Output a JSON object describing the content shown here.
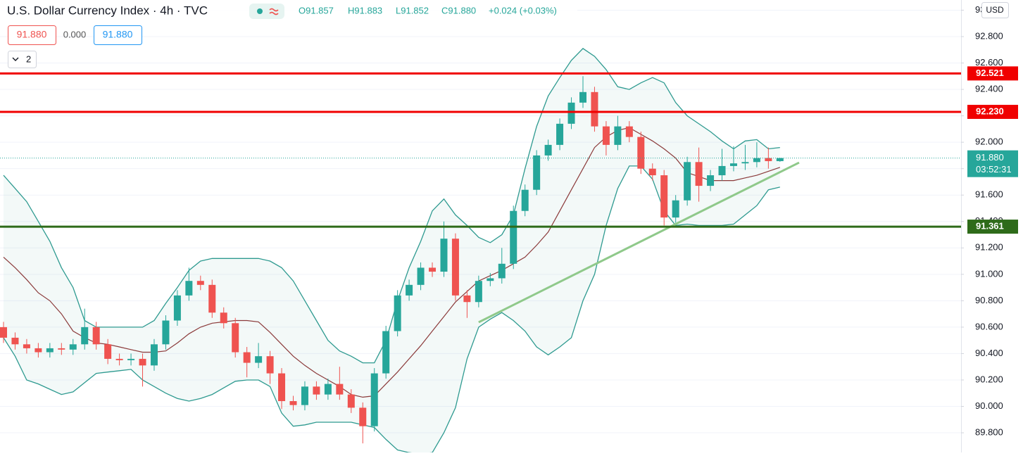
{
  "header": {
    "title": "U.S. Dollar Currency Index · 4h · TVC",
    "ohlc": [
      "O91.857",
      "H91.883",
      "L91.852",
      "C91.880",
      "+0.024 (+0.03%)"
    ],
    "bid": "91.880",
    "spread": "0.000",
    "ask": "91.880",
    "indicators": "2",
    "currency": "USD"
  },
  "chart_data": {
    "type": "candlestick",
    "open": [
      90.6,
      90.52,
      90.47,
      90.44,
      90.41,
      90.44,
      90.43,
      90.47,
      90.6,
      90.47,
      90.36,
      90.35,
      90.36,
      90.31,
      90.47,
      90.65,
      90.84,
      90.95,
      90.92,
      90.71,
      90.63,
      90.41,
      90.33,
      90.38,
      90.25,
      90.04,
      90.01,
      90.15,
      90.09,
      90.17,
      90.09,
      89.99,
      89.85,
      90.25,
      90.57,
      90.84,
      90.92,
      91.05,
      91.02,
      91.27,
      90.84,
      90.79,
      90.95,
      90.97,
      91.08,
      91.48,
      91.64,
      91.9,
      91.98,
      92.14,
      92.3,
      92.38,
      92.12,
      91.98,
      92.12,
      92.04,
      91.8,
      91.75,
      91.43,
      91.56,
      91.85,
      91.67,
      91.75,
      91.82,
      91.84,
      91.85,
      91.88,
      91.857
    ],
    "high": [
      90.64,
      90.56,
      90.51,
      90.48,
      90.48,
      90.48,
      90.51,
      90.74,
      90.64,
      90.51,
      90.4,
      90.4,
      90.4,
      90.51,
      90.69,
      90.88,
      91.05,
      90.99,
      90.96,
      90.75,
      90.67,
      90.45,
      90.48,
      90.42,
      90.29,
      90.08,
      90.19,
      90.19,
      90.21,
      90.3,
      90.13,
      90.03,
      90.29,
      90.61,
      90.88,
      90.96,
      91.09,
      91.09,
      91.4,
      91.31,
      90.88,
      90.99,
      91.01,
      91.2,
      91.52,
      91.68,
      91.94,
      92.02,
      92.18,
      92.34,
      92.5,
      92.42,
      92.16,
      92.2,
      92.16,
      92.08,
      91.84,
      91.79,
      91.6,
      91.89,
      91.96,
      91.79,
      91.95,
      91.97,
      91.98,
      92.0,
      91.96,
      91.883
    ],
    "low": [
      90.48,
      90.43,
      90.4,
      90.37,
      90.37,
      90.39,
      90.39,
      90.43,
      90.43,
      90.32,
      90.31,
      90.31,
      90.15,
      90.27,
      90.43,
      90.61,
      90.8,
      90.88,
      90.67,
      90.59,
      90.37,
      90.22,
      90.29,
      90.17,
      89.98,
      89.97,
      89.97,
      90.05,
      90.05,
      90.05,
      89.95,
      89.72,
      89.81,
      90.21,
      90.53,
      90.8,
      90.88,
      90.98,
      90.98,
      90.8,
      90.67,
      90.75,
      90.91,
      90.93,
      91.04,
      91.44,
      91.6,
      91.86,
      91.94,
      92.1,
      92.26,
      92.08,
      91.9,
      91.94,
      92.0,
      91.76,
      91.71,
      91.37,
      91.39,
      91.52,
      91.55,
      91.63,
      91.71,
      91.78,
      91.79,
      91.81,
      91.8,
      91.852
    ],
    "close": [
      90.52,
      90.47,
      90.44,
      90.41,
      90.44,
      90.43,
      90.47,
      90.6,
      90.47,
      90.36,
      90.35,
      90.36,
      90.31,
      90.47,
      90.65,
      90.84,
      90.95,
      90.92,
      90.71,
      90.63,
      90.41,
      90.33,
      90.38,
      90.25,
      90.04,
      90.01,
      90.15,
      90.09,
      90.17,
      90.09,
      89.99,
      89.85,
      90.25,
      90.57,
      90.84,
      90.92,
      91.05,
      91.02,
      91.27,
      90.84,
      90.79,
      90.95,
      90.97,
      91.08,
      91.48,
      91.64,
      91.9,
      91.98,
      92.14,
      92.3,
      92.38,
      92.12,
      91.98,
      92.12,
      92.04,
      91.8,
      91.75,
      91.43,
      91.56,
      91.85,
      91.67,
      91.75,
      91.82,
      91.84,
      91.85,
      91.88,
      91.857,
      91.88
    ],
    "up_color": "#26a69a",
    "down_color": "#ef5350",
    "bands": {
      "color": "#2e9a90",
      "middle_color": "#8b3a3a",
      "upper": [
        91.75,
        91.65,
        91.55,
        91.4,
        91.25,
        91.05,
        90.9,
        90.65,
        90.6,
        90.6,
        90.6,
        90.6,
        90.6,
        90.65,
        90.78,
        90.9,
        91.03,
        91.1,
        91.12,
        91.12,
        91.12,
        91.12,
        91.12,
        91.1,
        91.05,
        90.95,
        90.8,
        90.65,
        90.5,
        90.42,
        90.38,
        90.33,
        90.33,
        90.5,
        90.8,
        91.05,
        91.25,
        91.48,
        91.57,
        91.45,
        91.37,
        91.28,
        91.24,
        91.3,
        91.45,
        91.8,
        92.12,
        92.35,
        92.49,
        92.62,
        92.71,
        92.65,
        92.55,
        92.42,
        92.4,
        92.45,
        92.49,
        92.45,
        92.3,
        92.2,
        92.14,
        92.08,
        92.01,
        91.95,
        92.01,
        92.02,
        91.95,
        91.96
      ],
      "middle": [
        91.13,
        91.05,
        90.96,
        90.86,
        90.8,
        90.7,
        90.57,
        90.52,
        90.48,
        90.47,
        90.45,
        90.43,
        90.41,
        90.41,
        90.42,
        90.48,
        90.55,
        90.6,
        90.63,
        90.64,
        90.65,
        90.65,
        90.64,
        90.56,
        90.47,
        90.38,
        90.31,
        90.25,
        90.2,
        90.15,
        90.09,
        90.07,
        90.08,
        90.17,
        90.26,
        90.36,
        90.46,
        90.57,
        90.68,
        90.79,
        90.87,
        90.95,
        90.99,
        91.03,
        91.08,
        91.13,
        91.22,
        91.32,
        91.48,
        91.64,
        91.8,
        91.96,
        92.04,
        92.09,
        92.11,
        92.06,
        92.01,
        91.95,
        91.88,
        91.77,
        91.74,
        91.71,
        91.71,
        91.71,
        91.73,
        91.75,
        91.78,
        91.81
      ],
      "lower": [
        90.52,
        90.38,
        90.2,
        90.17,
        90.13,
        90.09,
        90.11,
        90.18,
        90.25,
        90.26,
        90.27,
        90.28,
        90.2,
        90.15,
        90.1,
        90.06,
        90.04,
        90.06,
        90.09,
        90.14,
        90.19,
        90.2,
        90.2,
        90.15,
        89.95,
        89.85,
        89.86,
        89.88,
        89.88,
        89.88,
        89.88,
        89.86,
        89.84,
        89.75,
        89.67,
        89.65,
        89.64,
        89.65,
        89.8,
        89.99,
        90.36,
        90.6,
        90.66,
        90.71,
        90.65,
        90.57,
        90.45,
        90.39,
        90.45,
        90.52,
        90.8,
        91.0,
        91.37,
        91.65,
        91.82,
        91.82,
        91.72,
        91.48,
        91.37,
        91.38,
        91.37,
        91.37,
        91.37,
        91.38,
        91.45,
        91.52,
        91.64,
        91.66
      ]
    },
    "trendline": {
      "x": [
        41,
        68.65
      ],
      "values": [
        90.637,
        91.846
      ],
      "color": "#8fc98a"
    },
    "levels": [
      {
        "value": 92.521,
        "label": "92.521",
        "color": "#f00000"
      },
      {
        "value": 92.23,
        "label": "92.230",
        "color": "#f00000"
      },
      {
        "value": 91.361,
        "label": "91.361",
        "color": "#2e6b1a"
      }
    ],
    "last_price": {
      "value": 91.88,
      "label": "91.880",
      "countdown": "03:52:31",
      "color": "#26a69a"
    },
    "ylim": [
      89.651,
      93.077
    ],
    "yticks": [
      {
        "value": 89.8,
        "label": "89.800"
      },
      {
        "value": 90.0,
        "label": "90.000"
      },
      {
        "value": 90.2,
        "label": "90.200"
      },
      {
        "value": 90.4,
        "label": "90.400"
      },
      {
        "value": 90.6,
        "label": "90.600"
      },
      {
        "value": 90.8,
        "label": "90.800"
      },
      {
        "value": 91.0,
        "label": "91.000"
      },
      {
        "value": 91.2,
        "label": "91.200"
      },
      {
        "value": 91.4,
        "label": "91.400"
      },
      {
        "value": 91.6,
        "label": "91.600"
      },
      {
        "value": 91.8,
        "label": "91.800"
      },
      {
        "value": 92.0,
        "label": "92.000"
      },
      {
        "value": 92.2,
        "label": "92.200"
      },
      {
        "value": 92.4,
        "label": "92.400"
      },
      {
        "value": 92.6,
        "label": "92.600"
      },
      {
        "value": 92.8,
        "label": "92.800"
      },
      {
        "value": 93.0,
        "label": "93.000"
      }
    ],
    "grid": true
  }
}
